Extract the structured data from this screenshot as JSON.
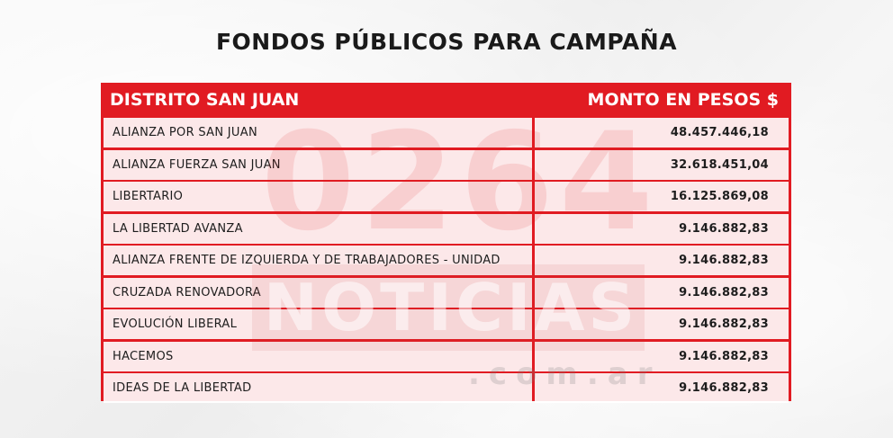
{
  "title": "FONDOS PÚBLICOS PARA CAMPAÑA",
  "table": {
    "header_district": "DISTRITO SAN JUAN",
    "header_amount": "MONTO EN PESOS $",
    "rows": [
      {
        "name": "ALIANZA POR SAN JUAN",
        "amount": "48.457.446,18"
      },
      {
        "name": "ALIANZA FUERZA SAN JUAN",
        "amount": "32.618.451,04"
      },
      {
        "name": "LIBERTARIO",
        "amount": "16.125.869,08"
      },
      {
        "name": "LA LIBERTAD AVANZA",
        "amount": "9.146.882,83"
      },
      {
        "name": "ALIANZA FRENTE DE IZQUIERDA Y DE TRABAJADORES - UNIDAD",
        "amount": "9.146.882,83"
      },
      {
        "name": "CRUZADA RENOVADORA",
        "amount": "9.146.882,83"
      },
      {
        "name": "EVOLUCIÓN LIBERAL",
        "amount": "9.146.882,83"
      },
      {
        "name": "HACEMOS",
        "amount": "9.146.882,83"
      },
      {
        "name": "IDEAS DE LA LIBERTAD",
        "amount": "9.146.882,83"
      }
    ]
  },
  "watermark": {
    "number": "0264",
    "word": "NOTICIAS",
    "domain": ".com.ar"
  },
  "colors": {
    "accent": "#e11b22",
    "text": "#1a1a1a",
    "background": "#f4f4f4"
  }
}
